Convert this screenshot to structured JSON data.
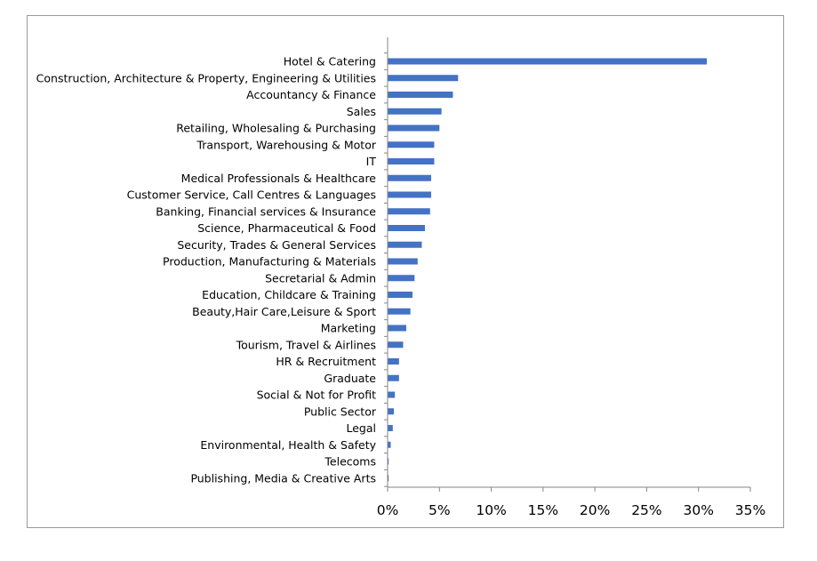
{
  "chart_data": {
    "type": "bar",
    "orientation": "horizontal",
    "title": "",
    "xlabel": "",
    "ylabel": "",
    "categories": [
      "Hotel & Catering",
      "Construction, Architecture & Property, Engineering & Utilities",
      "Accountancy & Finance",
      "Sales",
      "Retailing, Wholesaling & Purchasing",
      "Transport, Warehousing & Motor",
      "IT",
      "Medical Professionals & Healthcare",
      "Customer Service, Call Centres & Languages",
      "Banking, Financial services & Insurance",
      "Science, Pharmaceutical & Food",
      "Security, Trades & General Services",
      "Production, Manufacturing & Materials",
      "Secretarial & Admin",
      "Education, Childcare & Training",
      "Beauty,Hair Care,Leisure & Sport",
      "Marketing",
      "Tourism, Travel & Airlines",
      "HR & Recruitment",
      "Graduate",
      "Social & Not for Profit",
      "Public Sector",
      "Legal",
      "Environmental, Health & Safety",
      "Telecoms",
      "Publishing, Media & Creative Arts"
    ],
    "values": [
      30.8,
      6.8,
      6.3,
      5.2,
      5.0,
      4.5,
      4.5,
      4.2,
      4.2,
      4.1,
      3.6,
      3.3,
      2.9,
      2.6,
      2.4,
      2.2,
      1.8,
      1.5,
      1.1,
      1.1,
      0.7,
      0.6,
      0.5,
      0.3,
      0.1,
      0.1
    ],
    "x_ticks": [
      "0%",
      "5%",
      "10%",
      "15%",
      "20%",
      "25%",
      "30%",
      "35%"
    ],
    "x_tick_values": [
      0,
      5,
      10,
      15,
      20,
      25,
      30,
      35
    ],
    "xlim": [
      0,
      35
    ],
    "bar_color": "#4472C4",
    "grid": false,
    "legend": "none"
  }
}
